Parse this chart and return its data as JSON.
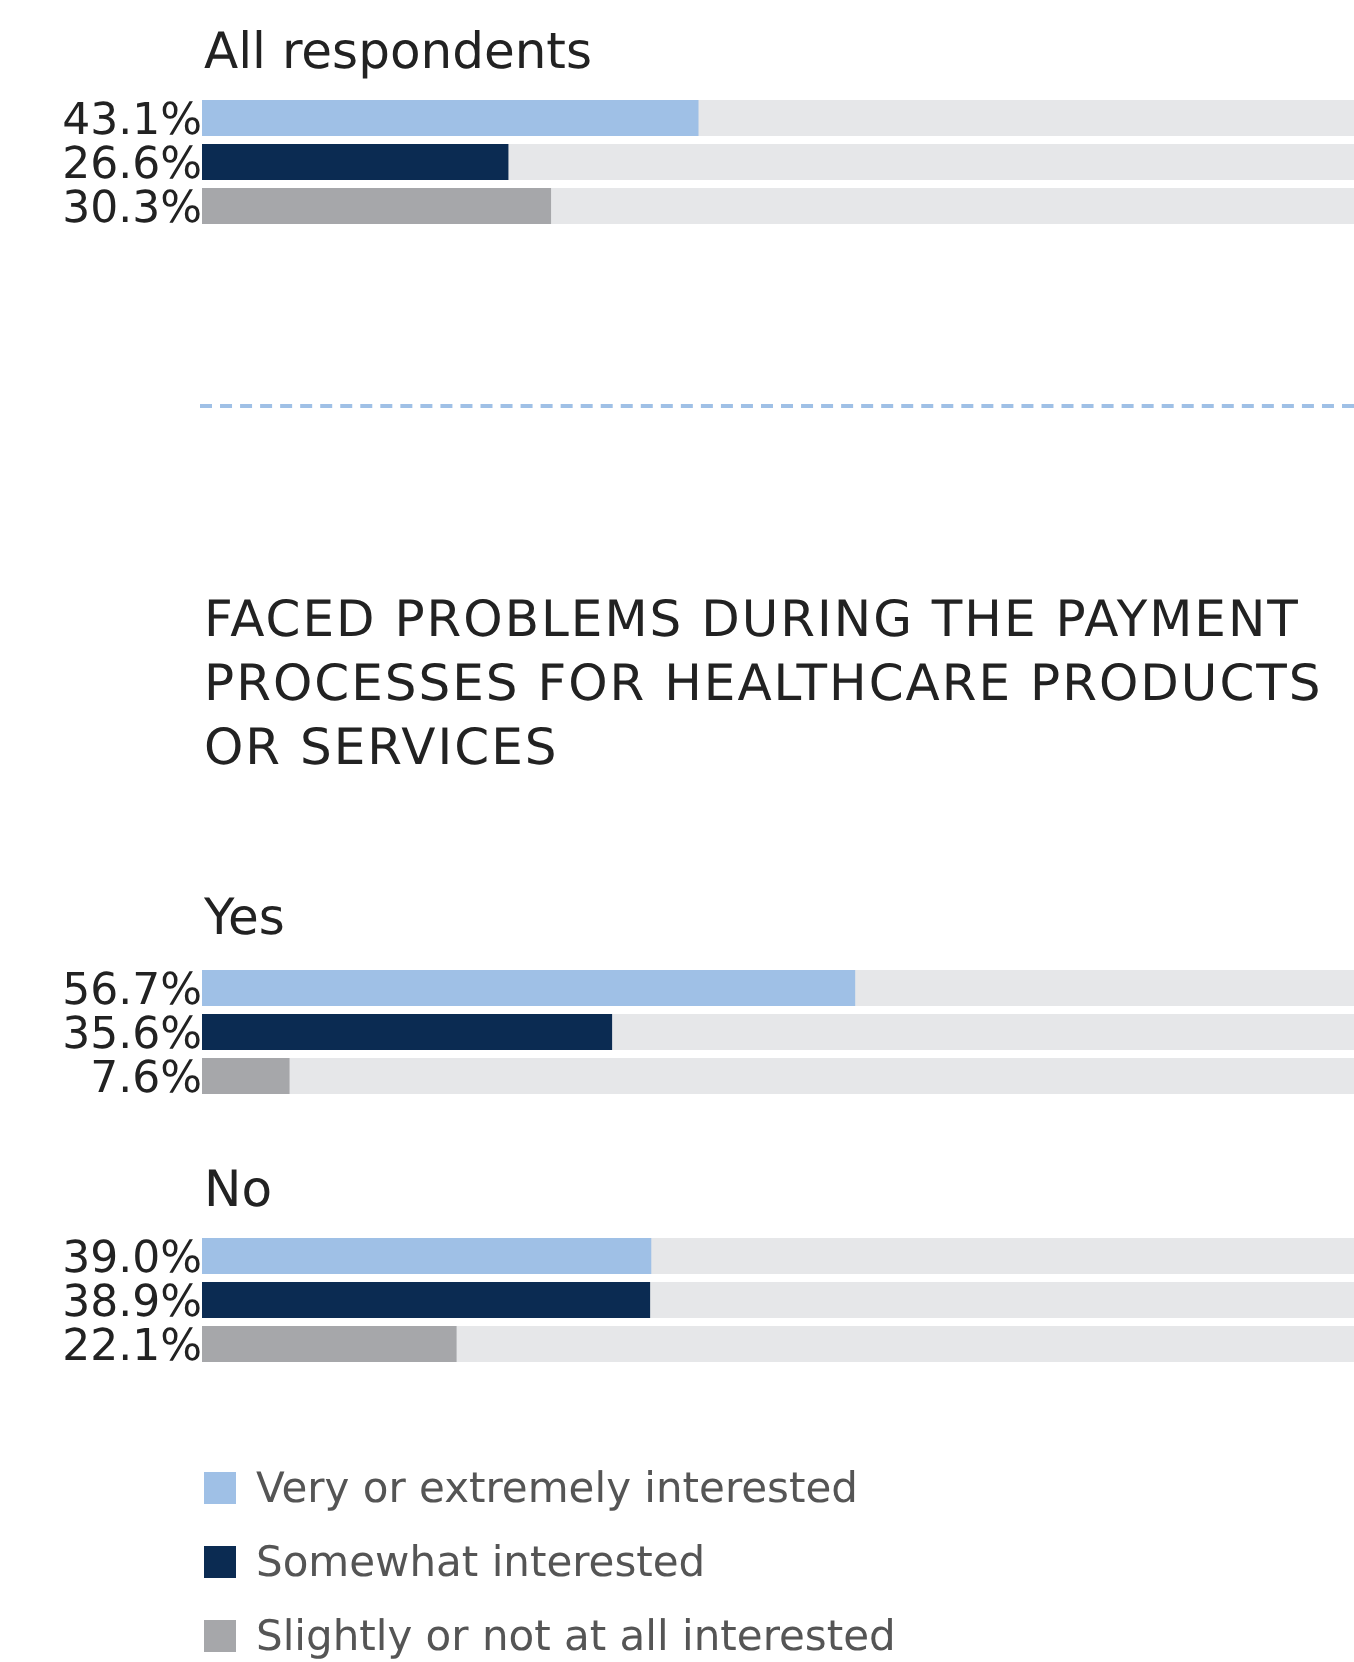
{
  "chart_data": [
    {
      "type": "bar",
      "orientation": "horizontal",
      "title": "All respondents",
      "categories": [
        null
      ],
      "xlim": [
        0,
        100
      ],
      "tick_labels": false,
      "series": [
        {
          "color": "#9fc0e6",
          "values": [
            43.1
          ],
          "value_labels": [
            "43.1%"
          ]
        },
        {
          "color": "#0b2b52",
          "values": [
            26.6
          ],
          "value_labels": [
            "26.6%"
          ]
        },
        {
          "color": "#a6a7aa",
          "values": [
            30.3
          ],
          "value_labels": [
            "30.3%"
          ]
        }
      ]
    },
    {
      "type": "bar",
      "orientation": "horizontal",
      "title": "FACED PROBLEMS DURING THE PAYMENT PROCESSES FOR HEALTHCARE PRODUCTS OR SERVICES",
      "subtitle": "Yes",
      "categories": [
        null
      ],
      "xlim": [
        0,
        100
      ],
      "tick_labels": false,
      "series": [
        {
          "color": "#9fc0e6",
          "values": [
            56.7
          ],
          "value_labels": [
            "56.7%"
          ]
        },
        {
          "color": "#0b2b52",
          "values": [
            35.6
          ],
          "value_labels": [
            "35.6%"
          ]
        },
        {
          "color": "#a6a7aa",
          "values": [
            7.6
          ],
          "value_labels": [
            "7.6%"
          ]
        }
      ]
    },
    {
      "type": "bar",
      "orientation": "horizontal",
      "title": "No",
      "categories": [
        null
      ],
      "xlim": [
        0,
        100
      ],
      "tick_labels": false,
      "legend": "bottom",
      "series": [
        {
          "name": "Very or extremely interested",
          "color": "#9fc0e6",
          "values": [
            39.0
          ],
          "value_labels": [
            "39.0%"
          ]
        },
        {
          "name": "Somewhat interested",
          "color": "#0b2b52",
          "values": [
            38.9
          ],
          "value_labels": [
            "38.9%"
          ]
        },
        {
          "name": "Slightly or not at all interested",
          "color": "#a6a7aa",
          "values": [
            22.1
          ],
          "value_labels": [
            "22.1%"
          ]
        }
      ]
    }
  ]
}
